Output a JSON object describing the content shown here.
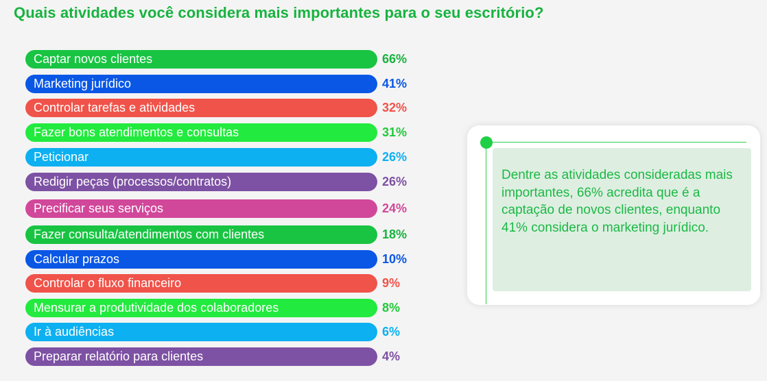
{
  "title": "Quais atividades você considera mais importantes para o seu escritório?",
  "colors": {
    "title": "#17b33f",
    "card_text": "#1cb844"
  },
  "chart_data": {
    "type": "bar",
    "orientation": "horizontal",
    "title": "Quais atividades você considera mais importantes para o seu escritório?",
    "unit": "%",
    "items": [
      {
        "label": "Captar novos clientes",
        "value": 66,
        "value_label": "66%",
        "color": "#18c442",
        "value_color": "#17b33f"
      },
      {
        "label": "Marketing jurídico",
        "value": 41,
        "value_label": "41%",
        "color": "#0a57e6",
        "value_color": "#0a57e6"
      },
      {
        "label": "Controlar tarefas e atividades",
        "value": 32,
        "value_label": "32%",
        "color": "#f0534a",
        "value_color": "#f0534a"
      },
      {
        "label": "Fazer bons atendimentos e consultas",
        "value": 31,
        "value_label": "31%",
        "color": "#22ea3e",
        "value_color": "#22c93c"
      },
      {
        "label": "Peticionar",
        "value": 26,
        "value_label": "26%",
        "color": "#0db0f0",
        "value_color": "#0db0f0"
      },
      {
        "label": "Redigir peças (processos/contratos)",
        "value": 26,
        "value_label": "26%",
        "color": "#7d51a3",
        "value_color": "#7d51a3"
      },
      {
        "label": "Precificar seus serviços",
        "value": 24,
        "value_label": "24%",
        "color": "#d1479a",
        "value_color": "#d1479a"
      },
      {
        "label": "Fazer consulta/atendimentos com clientes",
        "value": 18,
        "value_label": "18%",
        "color": "#18c442",
        "value_color": "#17b33f"
      },
      {
        "label": "Calcular prazos",
        "value": 10,
        "value_label": "10%",
        "color": "#0a57e6",
        "value_color": "#0a57e6"
      },
      {
        "label": "Controlar o fluxo financeiro",
        "value": 9,
        "value_label": "9%",
        "color": "#f0534a",
        "value_color": "#f0534a"
      },
      {
        "label": "Mensurar a produtividade dos colaboradores",
        "value": 8,
        "value_label": "8%",
        "color": "#22ea3e",
        "value_color": "#22c93c"
      },
      {
        "label": "Ir à audiências",
        "value": 6,
        "value_label": "6%",
        "color": "#0db0f0",
        "value_color": "#0db0f0"
      },
      {
        "label": "Preparar relatório para clientes",
        "value": 4,
        "value_label": "4%",
        "color": "#7d51a3",
        "value_color": "#7d51a3"
      }
    ]
  },
  "callout": {
    "text": "Dentre as atividades consideradas mais importantes, 66% acredita que é a captação de novos clientes, enquanto 41% considera o marketing jurídico."
  }
}
